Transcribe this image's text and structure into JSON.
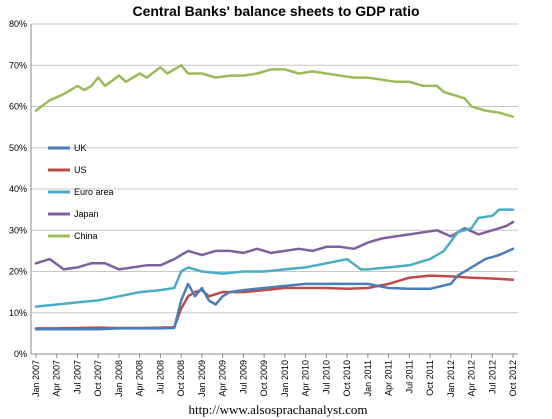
{
  "chart_data": {
    "type": "line",
    "title": "Central Banks' balance sheets to GDP ratio",
    "xlabel": "",
    "ylabel": "",
    "ylim": [
      0,
      80
    ],
    "yticks": [
      "0%",
      "10%",
      "20%",
      "30%",
      "40%",
      "50%",
      "60%",
      "70%",
      "80%"
    ],
    "xticks": [
      "Jan 2007",
      "Apr 2007",
      "Jul 2007",
      "Oct 2007",
      "Jan 2008",
      "Apr 2008",
      "Jul 2008",
      "Oct 2008",
      "Jan 2009",
      "Apr 2009",
      "Jul 2009",
      "Oct 2009",
      "Jan 2010",
      "Apr 2010",
      "Jul 2010",
      "Oct 2010",
      "Jan 2011",
      "Apr 2011",
      "Jul 2011",
      "Oct 2011",
      "Jan 2012",
      "Apr 2012",
      "Jul 2012",
      "Oct 2012"
    ],
    "x_range_months": [
      0,
      69
    ],
    "grid": "horizontal",
    "legend_position": "left-middle",
    "series": [
      {
        "name": "UK",
        "color": "#4a7ebb",
        "points": [
          [
            0,
            6
          ],
          [
            3,
            6
          ],
          [
            6,
            6
          ],
          [
            9,
            6
          ],
          [
            12,
            6.2
          ],
          [
            15,
            6.2
          ],
          [
            18,
            6.2
          ],
          [
            20,
            6.3
          ],
          [
            21,
            13
          ],
          [
            22,
            17
          ],
          [
            23,
            14
          ],
          [
            24,
            16
          ],
          [
            25,
            13
          ],
          [
            26,
            12
          ],
          [
            27,
            14
          ],
          [
            28,
            15
          ],
          [
            30,
            15.5
          ],
          [
            33,
            16
          ],
          [
            36,
            16.5
          ],
          [
            39,
            17
          ],
          [
            42,
            17
          ],
          [
            45,
            17
          ],
          [
            48,
            17
          ],
          [
            51,
            16
          ],
          [
            54,
            15.8
          ],
          [
            57,
            15.8
          ],
          [
            60,
            17
          ],
          [
            61,
            19
          ],
          [
            63,
            21
          ],
          [
            65,
            23
          ],
          [
            67,
            24
          ],
          [
            69,
            25.5
          ]
        ]
      },
      {
        "name": "US",
        "color": "#be4b48",
        "points": [
          [
            0,
            6.2
          ],
          [
            3,
            6.2
          ],
          [
            6,
            6.3
          ],
          [
            9,
            6.4
          ],
          [
            12,
            6.3
          ],
          [
            15,
            6.3
          ],
          [
            18,
            6.4
          ],
          [
            20,
            6.5
          ],
          [
            21,
            11
          ],
          [
            22,
            14
          ],
          [
            23,
            15
          ],
          [
            24,
            15.5
          ],
          [
            25,
            14
          ],
          [
            26,
            14.5
          ],
          [
            27,
            15
          ],
          [
            30,
            15
          ],
          [
            33,
            15.5
          ],
          [
            36,
            16
          ],
          [
            39,
            16
          ],
          [
            42,
            16
          ],
          [
            45,
            15.8
          ],
          [
            48,
            16
          ],
          [
            51,
            17
          ],
          [
            54,
            18.5
          ],
          [
            57,
            19
          ],
          [
            60,
            18.8
          ],
          [
            63,
            18.5
          ],
          [
            66,
            18.3
          ],
          [
            69,
            18
          ]
        ]
      },
      {
        "name": "Euro area",
        "color": "#4bacc6",
        "points": [
          [
            0,
            11.5
          ],
          [
            3,
            12
          ],
          [
            6,
            12.5
          ],
          [
            9,
            13
          ],
          [
            12,
            14
          ],
          [
            15,
            15
          ],
          [
            18,
            15.5
          ],
          [
            20,
            16
          ],
          [
            21,
            20
          ],
          [
            22,
            21
          ],
          [
            24,
            20
          ],
          [
            27,
            19.5
          ],
          [
            30,
            20
          ],
          [
            33,
            20
          ],
          [
            36,
            20.5
          ],
          [
            39,
            21
          ],
          [
            42,
            22
          ],
          [
            45,
            23
          ],
          [
            47,
            20.5
          ],
          [
            48,
            20.5
          ],
          [
            51,
            21
          ],
          [
            54,
            21.5
          ],
          [
            57,
            23
          ],
          [
            59,
            25
          ],
          [
            61,
            29.5
          ],
          [
            63,
            30.5
          ],
          [
            64,
            33
          ],
          [
            66,
            33.5
          ],
          [
            67,
            35
          ],
          [
            69,
            35
          ]
        ]
      },
      {
        "name": "Japan",
        "color": "#7f5fa0",
        "points": [
          [
            0,
            22
          ],
          [
            2,
            23
          ],
          [
            4,
            20.5
          ],
          [
            6,
            21
          ],
          [
            8,
            22
          ],
          [
            10,
            22
          ],
          [
            12,
            20.5
          ],
          [
            14,
            21
          ],
          [
            16,
            21.5
          ],
          [
            18,
            21.5
          ],
          [
            20,
            23
          ],
          [
            22,
            25
          ],
          [
            24,
            24
          ],
          [
            26,
            25
          ],
          [
            28,
            25
          ],
          [
            30,
            24.5
          ],
          [
            32,
            25.5
          ],
          [
            34,
            24.5
          ],
          [
            36,
            25
          ],
          [
            38,
            25.5
          ],
          [
            40,
            25
          ],
          [
            42,
            26
          ],
          [
            44,
            26
          ],
          [
            46,
            25.5
          ],
          [
            48,
            27
          ],
          [
            50,
            28
          ],
          [
            52,
            28.5
          ],
          [
            54,
            29
          ],
          [
            56,
            29.5
          ],
          [
            58,
            30
          ],
          [
            60,
            28.5
          ],
          [
            62,
            30.5
          ],
          [
            64,
            29
          ],
          [
            66,
            30
          ],
          [
            68,
            31
          ],
          [
            69,
            32
          ]
        ]
      },
      {
        "name": "China",
        "color": "#9bbb59",
        "points": [
          [
            0,
            59
          ],
          [
            2,
            61.5
          ],
          [
            4,
            63
          ],
          [
            6,
            65
          ],
          [
            7,
            64
          ],
          [
            8,
            65
          ],
          [
            9,
            67
          ],
          [
            10,
            65
          ],
          [
            12,
            67.5
          ],
          [
            13,
            66
          ],
          [
            15,
            68
          ],
          [
            16,
            67
          ],
          [
            18,
            69.5
          ],
          [
            19,
            68
          ],
          [
            21,
            70
          ],
          [
            22,
            68
          ],
          [
            24,
            68
          ],
          [
            26,
            67
          ],
          [
            28,
            67.5
          ],
          [
            30,
            67.5
          ],
          [
            32,
            68
          ],
          [
            34,
            69
          ],
          [
            36,
            69
          ],
          [
            38,
            68
          ],
          [
            40,
            68.5
          ],
          [
            42,
            68
          ],
          [
            44,
            67.5
          ],
          [
            46,
            67
          ],
          [
            48,
            67
          ],
          [
            50,
            66.5
          ],
          [
            52,
            66
          ],
          [
            54,
            66
          ],
          [
            56,
            65
          ],
          [
            58,
            65
          ],
          [
            59,
            63.5
          ],
          [
            61,
            62.5
          ],
          [
            62,
            62
          ],
          [
            63,
            60
          ],
          [
            65,
            59
          ],
          [
            67,
            58.5
          ],
          [
            69,
            57.5
          ]
        ]
      }
    ]
  },
  "footer": {
    "url": "http://www.alsosprachanalyst.com"
  }
}
